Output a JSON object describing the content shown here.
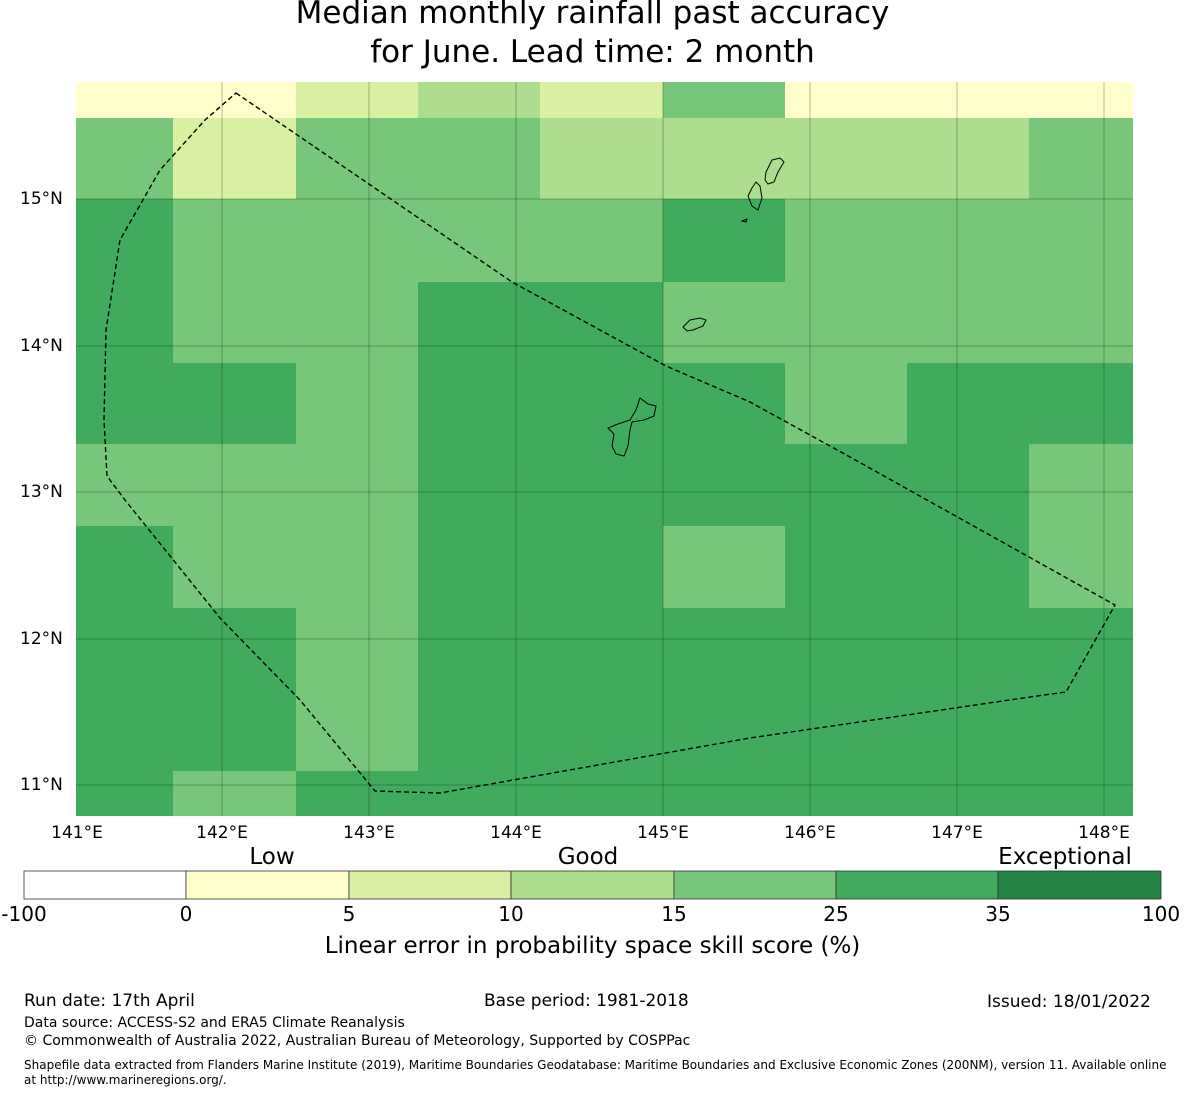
{
  "title": {
    "line1": "Median monthly rainfall past accuracy",
    "line2": "for June. Lead time: 2 month"
  },
  "map": {
    "lat_labels": [
      "15°N",
      "14°N",
      "13°N",
      "12°N",
      "11°N"
    ],
    "lon_labels": [
      "141°E",
      "142°E",
      "143°E",
      "144°E",
      "145°E",
      "146°E",
      "147°E",
      "148°E"
    ],
    "skill_category_grid": [
      [
        1,
        1,
        2,
        3,
        2,
        4,
        1,
        1,
        1
      ],
      [
        4,
        2,
        4,
        4,
        3,
        3,
        3,
        3,
        4
      ],
      [
        5,
        4,
        4,
        4,
        4,
        5,
        4,
        4,
        4
      ],
      [
        5,
        4,
        4,
        5,
        5,
        4,
        4,
        4,
        4
      ],
      [
        5,
        5,
        4,
        5,
        5,
        5,
        4,
        5,
        5
      ],
      [
        4,
        4,
        4,
        5,
        5,
        5,
        5,
        5,
        4
      ],
      [
        5,
        4,
        4,
        5,
        5,
        4,
        5,
        5,
        4
      ],
      [
        5,
        5,
        4,
        5,
        5,
        5,
        5,
        5,
        5
      ],
      [
        5,
        5,
        4,
        5,
        5,
        5,
        5,
        5,
        5
      ],
      [
        5,
        4,
        5,
        5,
        5,
        5,
        5,
        5,
        5
      ]
    ]
  },
  "colorbar": {
    "category_labels": [
      "Low",
      "Good",
      "Exceptional"
    ],
    "tick_labels": [
      "-100",
      "0",
      "5",
      "10",
      "15",
      "25",
      "35",
      "100"
    ],
    "colors": [
      "#ffffff",
      "#ffffcc",
      "#d9f0a3",
      "#addd8e",
      "#78c679",
      "#41ab5d",
      "#238443"
    ],
    "title": "Linear error in probability space skill score (%)"
  },
  "footer": {
    "run_date": "Run date: 17th April",
    "base_period": "Base period: 1981-2018",
    "issued": "Issued: 18/01/2022",
    "data_source": "Data source: ACCESS-S2 and ERA5 Climate Reanalysis",
    "copyright": "© Commonwealth of Australia 2022, Australian Bureau of Meteorology, Supported by COSPPac",
    "shapefile_line1": "Shapefile data extracted from Flanders Marine Institute (2019), Maritime Boundaries Geodatabase: Maritime Boundaries and Exclusive Economic Zones (200NM), version 11. Available online",
    "shapefile_line2": "at http://www.marineregions.org/."
  }
}
